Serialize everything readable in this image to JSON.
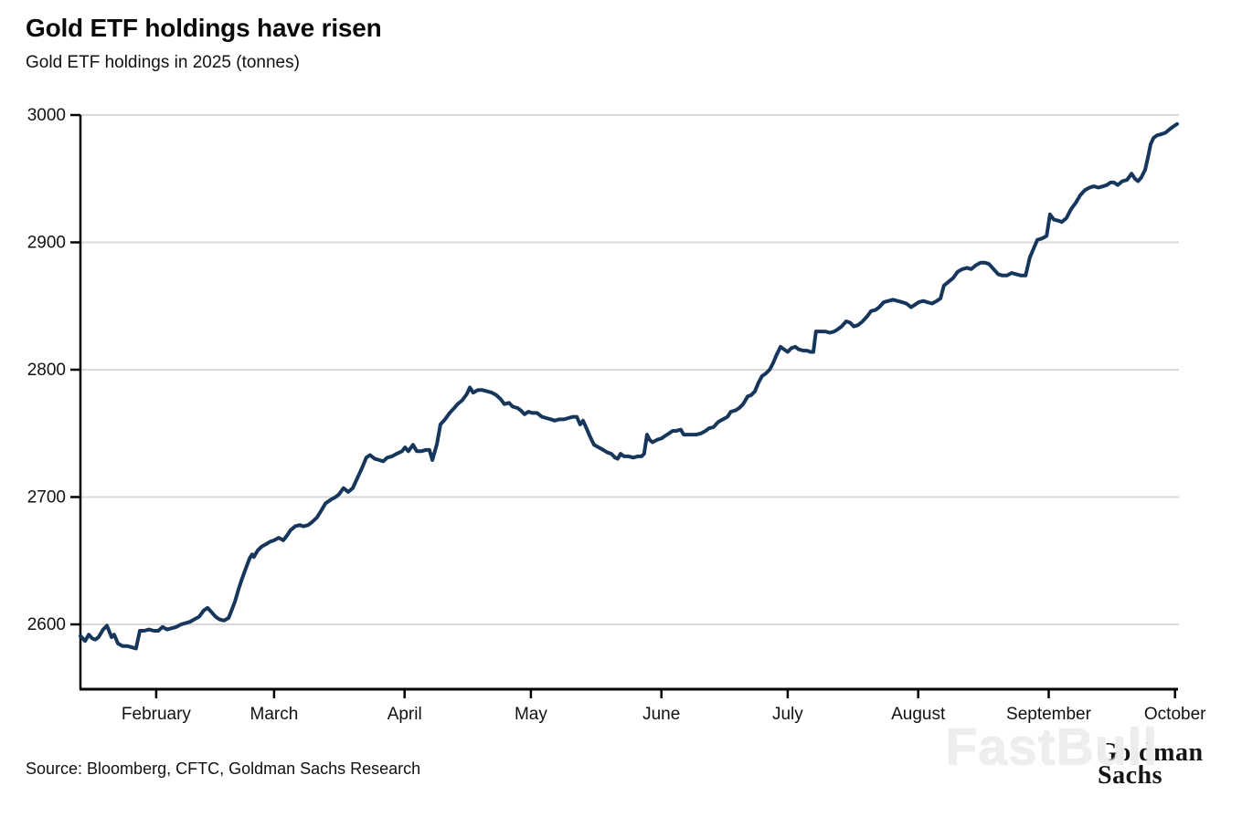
{
  "header": {
    "title": "Gold ETF holdings have risen",
    "subtitle": "Gold ETF holdings in 2025 (tonnes)"
  },
  "footer": {
    "source": "Source: Bloomberg, CFTC, Goldman Sachs Research",
    "watermark": "FastBull",
    "logo_line1": "Goldman",
    "logo_line2": "Sachs"
  },
  "chart_data": {
    "type": "line",
    "title": "Gold ETF holdings have risen",
    "subtitle": "Gold ETF holdings in 2025 (tonnes)",
    "xlabel": "",
    "ylabel": "tonnes",
    "x_unit": "day_of_year_2025",
    "x_domain": [
      14,
      274.5
    ],
    "ylim": [
      2549,
      3000
    ],
    "y_ticks": [
      2600,
      2700,
      2800,
      2900,
      3000
    ],
    "x_ticks": [
      {
        "doy": 32,
        "label": "February"
      },
      {
        "doy": 60,
        "label": "March"
      },
      {
        "doy": 91,
        "label": "April"
      },
      {
        "doy": 121,
        "label": "May"
      },
      {
        "doy": 152,
        "label": "June"
      },
      {
        "doy": 182,
        "label": "July"
      },
      {
        "doy": 213,
        "label": "August"
      },
      {
        "doy": 244,
        "label": "September"
      },
      {
        "doy": 274,
        "label": "October"
      }
    ],
    "grid": "horizontal",
    "legend": "none",
    "colors": {
      "line": "#16365c",
      "grid": "#d9d9d9",
      "axis": "#000000",
      "tick_label": "#111111"
    },
    "series": [
      {
        "name": "Gold ETF holdings (tonnes)",
        "points": [
          [
            14,
            2591
          ],
          [
            15.1,
            2587
          ],
          [
            16,
            2592
          ],
          [
            16.8,
            2589
          ],
          [
            17.5,
            2588
          ],
          [
            18.3,
            2590
          ],
          [
            19.4,
            2596
          ],
          [
            20.3,
            2599
          ],
          [
            21.4,
            2590
          ],
          [
            22,
            2592
          ],
          [
            22.9,
            2585
          ],
          [
            24,
            2583
          ],
          [
            25.1,
            2583
          ],
          [
            26.2,
            2582
          ],
          [
            27.2,
            2581
          ],
          [
            28.1,
            2595
          ],
          [
            29.2,
            2595
          ],
          [
            30.3,
            2596
          ],
          [
            31.4,
            2595
          ],
          [
            32.5,
            2595
          ],
          [
            33.5,
            2598
          ],
          [
            34.6,
            2596
          ],
          [
            35.7,
            2597
          ],
          [
            36.8,
            2598
          ],
          [
            37.9,
            2600
          ],
          [
            39,
            2601
          ],
          [
            40,
            2602
          ],
          [
            41.1,
            2604
          ],
          [
            42.2,
            2606
          ],
          [
            43.3,
            2611
          ],
          [
            44.2,
            2613
          ],
          [
            45.3,
            2609
          ],
          [
            46.1,
            2606
          ],
          [
            47,
            2604
          ],
          [
            48.1,
            2603
          ],
          [
            49.2,
            2605
          ],
          [
            49.8,
            2610
          ],
          [
            50.7,
            2618
          ],
          [
            51.6,
            2628
          ],
          [
            52.4,
            2636
          ],
          [
            53.3,
            2644
          ],
          [
            54.2,
            2652
          ],
          [
            54.8,
            2655
          ],
          [
            55.2,
            2653
          ],
          [
            56.1,
            2658
          ],
          [
            57,
            2661
          ],
          [
            58.1,
            2663
          ],
          [
            59.1,
            2665
          ],
          [
            60,
            2666
          ],
          [
            61.1,
            2668
          ],
          [
            62.2,
            2666
          ],
          [
            63.1,
            2670
          ],
          [
            63.9,
            2674
          ],
          [
            65,
            2677
          ],
          [
            66.1,
            2678
          ],
          [
            67,
            2677
          ],
          [
            68.1,
            2678
          ],
          [
            68.9,
            2680
          ],
          [
            70.2,
            2684
          ],
          [
            71.3,
            2690
          ],
          [
            72.2,
            2695
          ],
          [
            73.5,
            2698
          ],
          [
            74.6,
            2700
          ],
          [
            75.4,
            2702
          ],
          [
            76.5,
            2707
          ],
          [
            77.6,
            2704
          ],
          [
            78.7,
            2707
          ],
          [
            79.8,
            2715
          ],
          [
            80.9,
            2723
          ],
          [
            81.9,
            2731
          ],
          [
            82.8,
            2733
          ],
          [
            83.9,
            2730
          ],
          [
            85,
            2729
          ],
          [
            85.9,
            2728
          ],
          [
            86.9,
            2731
          ],
          [
            88,
            2732
          ],
          [
            89.1,
            2734
          ],
          [
            90.4,
            2736
          ],
          [
            91.1,
            2739
          ],
          [
            91.9,
            2736
          ],
          [
            93,
            2741
          ],
          [
            93.9,
            2736
          ],
          [
            95,
            2736
          ],
          [
            96,
            2737
          ],
          [
            96.9,
            2737
          ],
          [
            97.6,
            2729
          ],
          [
            98.7,
            2742
          ],
          [
            99.5,
            2757
          ],
          [
            100.6,
            2761
          ],
          [
            101.7,
            2766
          ],
          [
            102.8,
            2770
          ],
          [
            103.6,
            2773
          ],
          [
            104.7,
            2776
          ],
          [
            105.8,
            2781
          ],
          [
            106.5,
            2786
          ],
          [
            107.3,
            2782
          ],
          [
            108.4,
            2784
          ],
          [
            109.5,
            2784
          ],
          [
            110.6,
            2783
          ],
          [
            111.7,
            2782
          ],
          [
            112.8,
            2780
          ],
          [
            113.8,
            2777
          ],
          [
            114.7,
            2773
          ],
          [
            115.8,
            2774
          ],
          [
            116.7,
            2771
          ],
          [
            117.8,
            2770
          ],
          [
            118.6,
            2768
          ],
          [
            119.5,
            2765
          ],
          [
            120.4,
            2767
          ],
          [
            121.4,
            2766
          ],
          [
            122.5,
            2766
          ],
          [
            123.6,
            2763
          ],
          [
            124.7,
            2762
          ],
          [
            125.8,
            2761
          ],
          [
            126.6,
            2760
          ],
          [
            127.7,
            2761
          ],
          [
            128.8,
            2761
          ],
          [
            129.9,
            2762
          ],
          [
            131,
            2763
          ],
          [
            131.9,
            2763
          ],
          [
            132.7,
            2757
          ],
          [
            133.4,
            2760
          ],
          [
            134.2,
            2754
          ],
          [
            135.1,
            2747
          ],
          [
            136,
            2741
          ],
          [
            137.1,
            2739
          ],
          [
            138.2,
            2737
          ],
          [
            139.2,
            2735
          ],
          [
            140.1,
            2734
          ],
          [
            141,
            2731
          ],
          [
            141.6,
            2730
          ],
          [
            142.3,
            2734
          ],
          [
            143.1,
            2732
          ],
          [
            144.2,
            2732
          ],
          [
            145.3,
            2731
          ],
          [
            146.4,
            2732
          ],
          [
            147.3,
            2732
          ],
          [
            147.9,
            2734
          ],
          [
            148.6,
            2749
          ],
          [
            149.2,
            2745
          ],
          [
            149.9,
            2743
          ],
          [
            151,
            2745
          ],
          [
            152,
            2746
          ],
          [
            152.9,
            2748
          ],
          [
            153.8,
            2750
          ],
          [
            154.7,
            2752
          ],
          [
            155.5,
            2752
          ],
          [
            156.6,
            2753
          ],
          [
            157.3,
            2749
          ],
          [
            158.3,
            2749
          ],
          [
            159.4,
            2749
          ],
          [
            160.3,
            2749
          ],
          [
            161.4,
            2750
          ],
          [
            162.5,
            2752
          ],
          [
            163.3,
            2754
          ],
          [
            164.4,
            2755
          ],
          [
            165.5,
            2759
          ],
          [
            166.6,
            2761
          ],
          [
            167.7,
            2763
          ],
          [
            168.5,
            2767
          ],
          [
            169.6,
            2768
          ],
          [
            170.5,
            2770
          ],
          [
            171.4,
            2773
          ],
          [
            172.5,
            2779
          ],
          [
            173.3,
            2780
          ],
          [
            174.2,
            2783
          ],
          [
            175.1,
            2790
          ],
          [
            175.9,
            2795
          ],
          [
            176.8,
            2797
          ],
          [
            177.7,
            2800
          ],
          [
            178.5,
            2805
          ],
          [
            179.4,
            2812
          ],
          [
            180.3,
            2818
          ],
          [
            181.1,
            2816
          ],
          [
            182,
            2814
          ],
          [
            182.9,
            2817
          ],
          [
            183.8,
            2818
          ],
          [
            184.6,
            2816
          ],
          [
            185.7,
            2815
          ],
          [
            186.6,
            2815
          ],
          [
            187.4,
            2814
          ],
          [
            188.1,
            2814
          ],
          [
            188.7,
            2830
          ],
          [
            189.8,
            2830
          ],
          [
            190.9,
            2830
          ],
          [
            192,
            2829
          ],
          [
            193.1,
            2830
          ],
          [
            194,
            2832
          ],
          [
            194.8,
            2834
          ],
          [
            195.9,
            2838
          ],
          [
            196.8,
            2837
          ],
          [
            197.7,
            2834
          ],
          [
            198.7,
            2835
          ],
          [
            199.8,
            2838
          ],
          [
            200.9,
            2842
          ],
          [
            201.8,
            2846
          ],
          [
            202.9,
            2847
          ],
          [
            203.7,
            2849
          ],
          [
            204.8,
            2853
          ],
          [
            205.9,
            2854
          ],
          [
            207,
            2855
          ],
          [
            208.1,
            2854
          ],
          [
            209.2,
            2853
          ],
          [
            210.2,
            2852
          ],
          [
            211.3,
            2849
          ],
          [
            212.2,
            2851
          ],
          [
            213.1,
            2853
          ],
          [
            214.2,
            2854
          ],
          [
            215.2,
            2853
          ],
          [
            216.3,
            2852
          ],
          [
            217.4,
            2854
          ],
          [
            218.3,
            2856
          ],
          [
            219.1,
            2866
          ],
          [
            220.2,
            2869
          ],
          [
            221.3,
            2872
          ],
          [
            222.4,
            2877
          ],
          [
            223.5,
            2879
          ],
          [
            224.6,
            2880
          ],
          [
            225.6,
            2879
          ],
          [
            226.7,
            2882
          ],
          [
            227.8,
            2884
          ],
          [
            228.9,
            2884
          ],
          [
            229.8,
            2883
          ],
          [
            230.9,
            2879
          ],
          [
            232,
            2875
          ],
          [
            233,
            2874
          ],
          [
            234.1,
            2874
          ],
          [
            235.2,
            2876
          ],
          [
            236.3,
            2875
          ],
          [
            237.4,
            2874
          ],
          [
            238.5,
            2874
          ],
          [
            239.5,
            2888
          ],
          [
            240.4,
            2895
          ],
          [
            241.3,
            2902
          ],
          [
            242.4,
            2903
          ],
          [
            243.5,
            2905
          ],
          [
            244.3,
            2922
          ],
          [
            245.2,
            2918
          ],
          [
            246.3,
            2917
          ],
          [
            247.1,
            2916
          ],
          [
            248.2,
            2919
          ],
          [
            249.3,
            2926
          ],
          [
            250.4,
            2931
          ],
          [
            251.5,
            2937
          ],
          [
            252.6,
            2941
          ],
          [
            253.7,
            2943
          ],
          [
            254.7,
            2944
          ],
          [
            255.8,
            2943
          ],
          [
            256.9,
            2944
          ],
          [
            257.8,
            2945
          ],
          [
            258.7,
            2947
          ],
          [
            259.5,
            2947
          ],
          [
            260.4,
            2945
          ],
          [
            261.5,
            2948
          ],
          [
            262.6,
            2949
          ],
          [
            263.7,
            2954
          ],
          [
            264.5,
            2950
          ],
          [
            265.2,
            2948
          ],
          [
            266,
            2951
          ],
          [
            266.9,
            2957
          ],
          [
            267.6,
            2967
          ],
          [
            268.2,
            2977
          ],
          [
            268.9,
            2982
          ],
          [
            269.7,
            2984
          ],
          [
            270.8,
            2985
          ],
          [
            271.7,
            2986
          ],
          [
            272.8,
            2989
          ],
          [
            273.6,
            2991
          ],
          [
            274.5,
            2993
          ]
        ]
      }
    ]
  }
}
